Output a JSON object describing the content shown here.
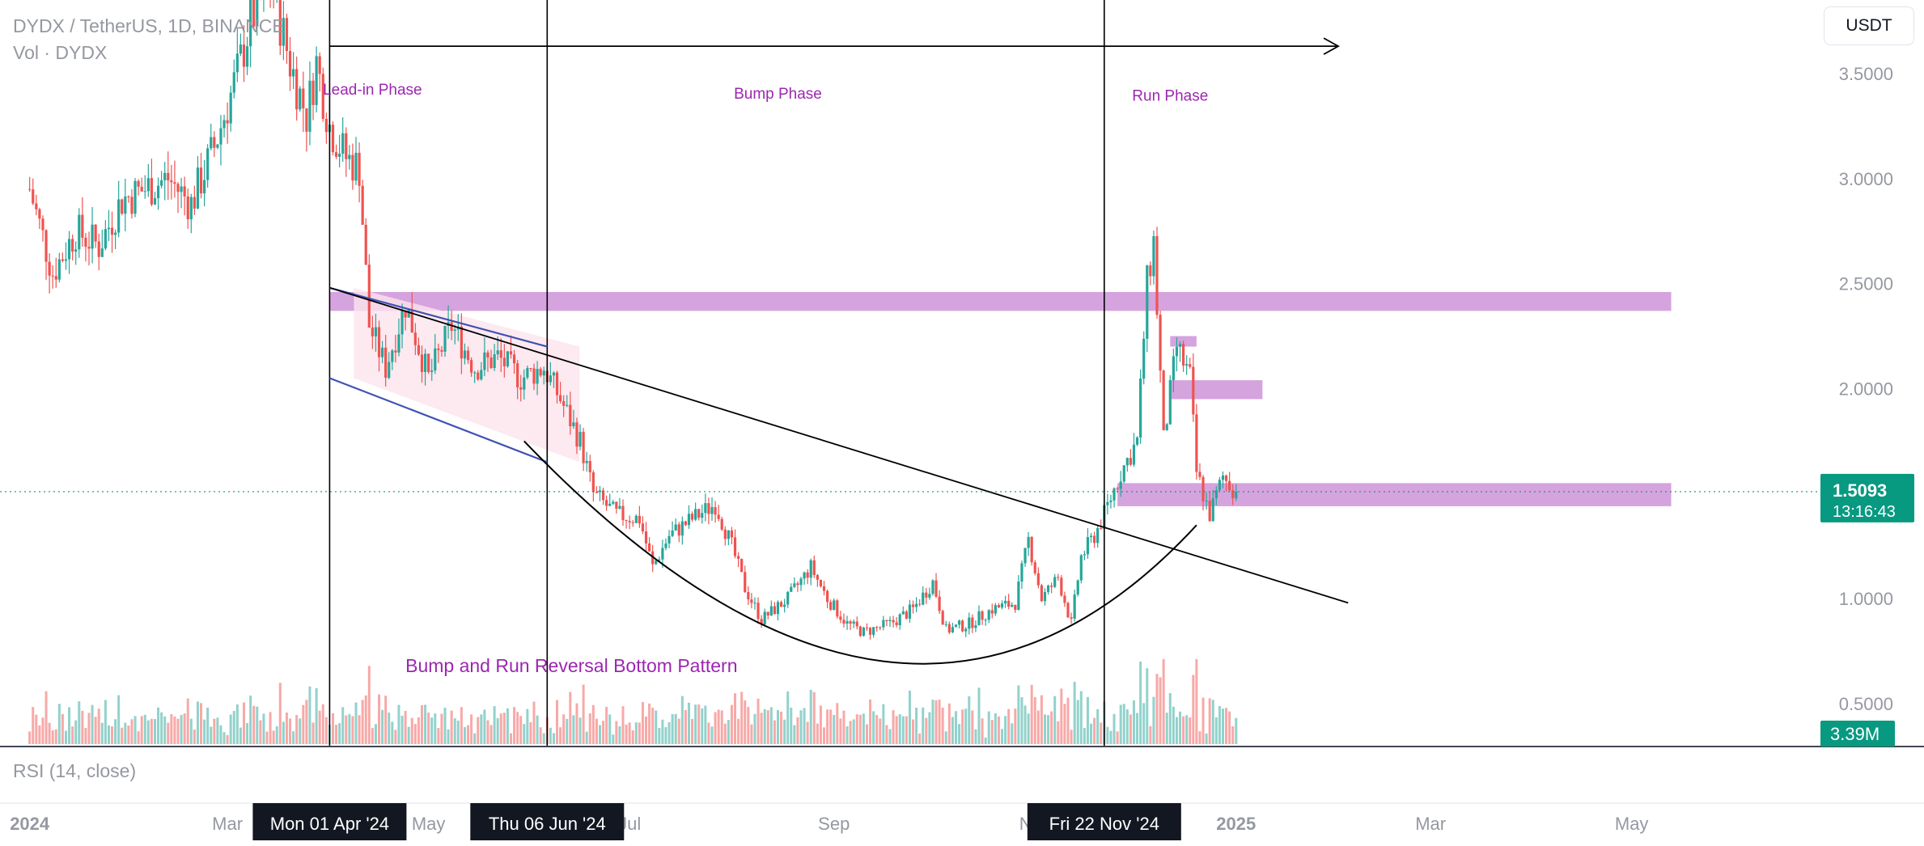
{
  "header": {
    "symbol_line": "DYDX / TetherUS, 1D, BINANCE",
    "volume_line": "Vol · DYDX"
  },
  "currency_button": "USDT",
  "rsi_label": "RSI (14, close)",
  "colors": {
    "up": "#26a69a",
    "down": "#ef5350",
    "zone": "#ce93d8",
    "channel_fill": "#fce4ec",
    "channel_line": "#7b8ce6",
    "annotation": "#9c27b0",
    "current_price_badge": "#089981"
  },
  "chart_data": {
    "type": "candlestick",
    "interval": "1D",
    "ylim": [
      0.3,
      3.85
    ],
    "y_ticks": [
      {
        "value": 3.5,
        "label": "3.5000"
      },
      {
        "value": 3.0,
        "label": "3.0000"
      },
      {
        "value": 2.5,
        "label": "2.5000"
      },
      {
        "value": 2.0,
        "label": "2.0000"
      },
      {
        "value": 1.0,
        "label": "1.0000"
      },
      {
        "value": 0.5,
        "label": "0.5000"
      }
    ],
    "x_ticks": [
      "2024",
      "Mar",
      "May",
      "Jul",
      "Sep",
      "Nov",
      "2025",
      "Mar",
      "May"
    ],
    "x_tick_dates": [
      "2024-01-01",
      "2024-03-01",
      "2024-05-01",
      "2024-07-01",
      "2024-09-01",
      "2024-11-01",
      "2025-01-01",
      "2025-03-01",
      "2025-05-01"
    ],
    "x_domain": [
      "2023-12-23",
      "2025-06-15"
    ],
    "highlighted_dates": [
      {
        "date": "2024-04-01",
        "label": "Mon 01 Apr '24"
      },
      {
        "date": "2024-06-06",
        "label": "Thu 06 Jun '24"
      },
      {
        "date": "2024-11-22",
        "label": "Fri 22 Nov '24"
      }
    ],
    "current_price": {
      "value": 1.5093,
      "label": "1.5093",
      "countdown": "13:16:43"
    },
    "volume_badge": "3.39M",
    "price_path": [
      [
        "2024-01-01",
        2.95
      ],
      [
        "2024-01-08",
        2.55
      ],
      [
        "2024-01-15",
        2.75
      ],
      [
        "2024-01-22",
        2.68
      ],
      [
        "2024-01-29",
        2.9
      ],
      [
        "2024-02-05",
        2.95
      ],
      [
        "2024-02-12",
        3.0
      ],
      [
        "2024-02-19",
        2.88
      ],
      [
        "2024-02-26",
        3.15
      ],
      [
        "2024-03-04",
        3.5
      ],
      [
        "2024-03-08",
        3.75
      ],
      [
        "2024-03-14",
        3.95
      ],
      [
        "2024-03-20",
        3.55
      ],
      [
        "2024-03-25",
        3.3
      ],
      [
        "2024-03-28",
        3.55
      ],
      [
        "2024-04-01",
        3.25
      ],
      [
        "2024-04-06",
        3.1
      ],
      [
        "2024-04-10",
        3.05
      ],
      [
        "2024-04-13",
        2.3
      ],
      [
        "2024-04-18",
        2.1
      ],
      [
        "2024-04-24",
        2.4
      ],
      [
        "2024-05-01",
        2.05
      ],
      [
        "2024-05-08",
        2.3
      ],
      [
        "2024-05-15",
        2.1
      ],
      [
        "2024-05-22",
        2.15
      ],
      [
        "2024-05-29",
        2.05
      ],
      [
        "2024-06-05",
        2.1
      ],
      [
        "2024-06-10",
        1.95
      ],
      [
        "2024-06-16",
        1.75
      ],
      [
        "2024-06-20",
        1.5
      ],
      [
        "2024-06-27",
        1.4
      ],
      [
        "2024-07-04",
        1.38
      ],
      [
        "2024-07-08",
        1.15
      ],
      [
        "2024-07-13",
        1.3
      ],
      [
        "2024-07-20",
        1.38
      ],
      [
        "2024-07-27",
        1.45
      ],
      [
        "2024-08-01",
        1.25
      ],
      [
        "2024-08-05",
        1.05
      ],
      [
        "2024-08-10",
        0.9
      ],
      [
        "2024-08-18",
        1.0
      ],
      [
        "2024-08-25",
        1.15
      ],
      [
        "2024-08-30",
        1.0
      ],
      [
        "2024-09-05",
        0.88
      ],
      [
        "2024-09-10",
        0.84
      ],
      [
        "2024-09-18",
        0.88
      ],
      [
        "2024-09-25",
        0.95
      ],
      [
        "2024-10-01",
        1.08
      ],
      [
        "2024-10-05",
        0.85
      ],
      [
        "2024-10-12",
        0.88
      ],
      [
        "2024-10-19",
        0.95
      ],
      [
        "2024-10-26",
        0.98
      ],
      [
        "2024-10-30",
        1.28
      ],
      [
        "2024-11-03",
        1.0
      ],
      [
        "2024-11-08",
        1.1
      ],
      [
        "2024-11-12",
        0.88
      ],
      [
        "2024-11-15",
        1.2
      ],
      [
        "2024-11-19",
        1.3
      ],
      [
        "2024-11-22",
        1.4
      ],
      [
        "2024-11-27",
        1.6
      ],
      [
        "2024-12-02",
        1.75
      ],
      [
        "2024-12-05",
        2.5
      ],
      [
        "2024-12-07",
        2.7
      ],
      [
        "2024-12-10",
        1.75
      ],
      [
        "2024-12-14",
        2.2
      ],
      [
        "2024-12-18",
        2.05
      ],
      [
        "2024-12-20",
        1.6
      ],
      [
        "2024-12-24",
        1.4
      ],
      [
        "2024-12-28",
        1.58
      ],
      [
        "2025-01-01",
        1.51
      ]
    ]
  },
  "annotations": {
    "phases": [
      {
        "label": "Lead-in Phase",
        "date": "2024-04-14",
        "value": 3.4
      },
      {
        "label": "Bump Phase",
        "date": "2024-08-15",
        "value": 3.38
      },
      {
        "label": "Run Phase",
        "date": "2024-12-12",
        "value": 3.37
      }
    ],
    "pattern_title": {
      "label": "Bump and Run Reversal Bottom Pattern",
      "date": "2024-04-24",
      "value": 0.65
    },
    "zones": [
      {
        "from": "2024-04-01",
        "to": "2025-05-13",
        "low": 2.37,
        "high": 2.46
      },
      {
        "from": "2024-11-26",
        "to": "2025-05-13",
        "low": 1.44,
        "high": 1.55
      },
      {
        "from": "2024-12-12",
        "to": "2025-01-09",
        "low": 1.95,
        "high": 2.04
      },
      {
        "from": "2024-12-12",
        "to": "2024-12-20",
        "low": 2.2,
        "high": 2.25
      }
    ],
    "arrow": {
      "from": "2024-04-01",
      "to": "2025-02-01",
      "value": 3.63
    },
    "trendlines": [
      {
        "from": [
          "2024-04-01",
          2.48
        ],
        "to": [
          "2024-06-06",
          2.2
        ]
      },
      {
        "from": [
          "2024-04-01",
          2.05
        ],
        "to": [
          "2024-06-06",
          1.65
        ]
      },
      {
        "from": [
          "2024-04-01",
          2.48
        ],
        "to": [
          "2025-02-04",
          0.98
        ]
      }
    ],
    "bottom_curve": {
      "from": [
        "2024-05-30",
        1.75
      ],
      "low": [
        "2024-09-23",
        0.68
      ],
      "to": [
        "2024-12-20",
        1.35
      ]
    }
  }
}
